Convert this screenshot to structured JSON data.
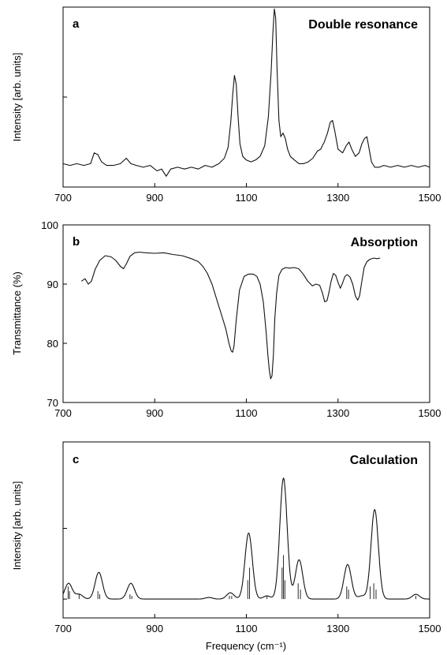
{
  "chart_data": [
    {
      "id": "a",
      "type": "line",
      "panel_letter": "a",
      "title": "Double resonance",
      "xlabel": "",
      "ylabel": "Intensity [arb. units]",
      "xlim": [
        700,
        1500
      ],
      "ylim": [
        0,
        1
      ],
      "xticks": [
        700,
        900,
        1100,
        1300,
        1500
      ],
      "yticks": [],
      "yticks_unlabeled": [
        0.5
      ],
      "grid": false,
      "series": [
        {
          "x": [
            700,
            715,
            730,
            745,
            760,
            768,
            776,
            784,
            795,
            810,
            825,
            838,
            848,
            860,
            875,
            890,
            905,
            915,
            925,
            935,
            950,
            965,
            980,
            995,
            1010,
            1025,
            1040,
            1052,
            1060,
            1066,
            1070,
            1074,
            1078,
            1082,
            1086,
            1092,
            1100,
            1110,
            1120,
            1130,
            1140,
            1148,
            1154,
            1158,
            1161,
            1164,
            1167,
            1171,
            1175,
            1180,
            1185,
            1190,
            1196,
            1205,
            1215,
            1225,
            1235,
            1245,
            1255,
            1262,
            1270,
            1277,
            1283,
            1288,
            1293,
            1300,
            1310,
            1318,
            1324,
            1330,
            1338,
            1346,
            1352,
            1358,
            1363,
            1368,
            1373,
            1380,
            1390,
            1400,
            1415,
            1430,
            1445,
            1460,
            1475,
            1490,
            1500
          ],
          "y": [
            0.13,
            0.12,
            0.13,
            0.12,
            0.13,
            0.19,
            0.18,
            0.14,
            0.12,
            0.12,
            0.13,
            0.16,
            0.13,
            0.12,
            0.11,
            0.12,
            0.09,
            0.1,
            0.06,
            0.1,
            0.11,
            0.1,
            0.11,
            0.1,
            0.12,
            0.11,
            0.13,
            0.16,
            0.22,
            0.36,
            0.51,
            0.62,
            0.57,
            0.39,
            0.24,
            0.17,
            0.15,
            0.14,
            0.15,
            0.17,
            0.23,
            0.39,
            0.64,
            0.86,
            0.99,
            0.94,
            0.66,
            0.37,
            0.28,
            0.3,
            0.27,
            0.21,
            0.17,
            0.15,
            0.13,
            0.13,
            0.14,
            0.16,
            0.2,
            0.21,
            0.25,
            0.3,
            0.36,
            0.37,
            0.31,
            0.21,
            0.19,
            0.23,
            0.25,
            0.21,
            0.17,
            0.19,
            0.24,
            0.27,
            0.28,
            0.21,
            0.14,
            0.11,
            0.11,
            0.12,
            0.11,
            0.12,
            0.11,
            0.12,
            0.11,
            0.12,
            0.11
          ]
        }
      ]
    },
    {
      "id": "b",
      "type": "line",
      "panel_letter": "b",
      "title": "Absorption",
      "xlabel": "",
      "ylabel": "Transmittance (%)",
      "xlim": [
        700,
        1500
      ],
      "ylim": [
        70,
        100
      ],
      "xticks": [
        700,
        900,
        1100,
        1300,
        1500
      ],
      "yticks": [
        70,
        80,
        90,
        100
      ],
      "grid": false,
      "series": [
        {
          "x": [
            740,
            748,
            755,
            762,
            770,
            780,
            792,
            805,
            815,
            825,
            832,
            838,
            846,
            856,
            866,
            880,
            900,
            920,
            940,
            960,
            980,
            995,
            1005,
            1015,
            1025,
            1035,
            1045,
            1055,
            1062,
            1067,
            1070,
            1073,
            1078,
            1085,
            1095,
            1105,
            1115,
            1123,
            1130,
            1137,
            1143,
            1147,
            1150,
            1153,
            1156,
            1159,
            1162,
            1166,
            1171,
            1178,
            1186,
            1194,
            1204,
            1214,
            1224,
            1234,
            1244,
            1252,
            1260,
            1266,
            1271,
            1276,
            1280,
            1285,
            1290,
            1295,
            1300,
            1305,
            1310,
            1315,
            1320,
            1326,
            1332,
            1338,
            1343,
            1347,
            1352,
            1357,
            1363,
            1370,
            1378,
            1385,
            1392
          ],
          "y": [
            90.5,
            90.9,
            90.0,
            90.5,
            92.5,
            94.0,
            94.8,
            94.6,
            94.0,
            93.0,
            92.6,
            93.4,
            94.7,
            95.3,
            95.4,
            95.3,
            95.2,
            95.3,
            95.0,
            94.8,
            94.3,
            93.8,
            93.0,
            91.8,
            90.0,
            87.5,
            85.0,
            82.5,
            80.0,
            78.7,
            78.5,
            79.5,
            84.0,
            89.0,
            91.3,
            91.7,
            91.7,
            91.3,
            90.0,
            87.0,
            82.0,
            78.0,
            75.5,
            74.0,
            74.5,
            78.0,
            84.0,
            88.5,
            91.5,
            92.5,
            92.8,
            92.7,
            92.8,
            92.6,
            91.7,
            90.5,
            89.7,
            90.0,
            89.8,
            88.5,
            87.0,
            87.2,
            88.5,
            90.5,
            91.8,
            91.5,
            90.3,
            89.3,
            90.2,
            91.3,
            91.6,
            91.2,
            90.0,
            88.0,
            87.3,
            88.0,
            90.5,
            92.8,
            93.8,
            94.2,
            94.4,
            94.3,
            94.4
          ]
        }
      ]
    },
    {
      "id": "c",
      "type": "line",
      "panel_letter": "c",
      "title": "Calculation",
      "xlabel": "Frequency (cm⁻¹)",
      "ylabel": "Intensity [arb. units]",
      "xlim": [
        700,
        1500
      ],
      "ylim": [
        -0.12,
        1
      ],
      "xticks": [
        700,
        900,
        1100,
        1300,
        1500
      ],
      "yticks": [],
      "yticks_unlabeled": [
        0.45,
        0
      ],
      "grid": false,
      "baseline": 0,
      "linewidth_cm": 8,
      "peaks": [
        {
          "center": 712,
          "height": 0.1
        },
        {
          "center": 735,
          "height": 0.03
        },
        {
          "center": 778,
          "height": 0.17
        },
        {
          "center": 848,
          "height": 0.1
        },
        {
          "center": 1018,
          "height": 0.01
        },
        {
          "center": 1065,
          "height": 0.04
        },
        {
          "center": 1105,
          "height": 0.42
        },
        {
          "center": 1145,
          "height": 0.02
        },
        {
          "center": 1181,
          "height": 0.77
        },
        {
          "center": 1215,
          "height": 0.25
        },
        {
          "center": 1321,
          "height": 0.22
        },
        {
          "center": 1352,
          "height": 0.02
        },
        {
          "center": 1380,
          "height": 0.57
        },
        {
          "center": 1470,
          "height": 0.03
        }
      ],
      "sticks": [
        {
          "x": 711,
          "h": 0.08
        },
        {
          "x": 714,
          "h": 0.05
        },
        {
          "x": 735,
          "h": 0.03
        },
        {
          "x": 776,
          "h": 0.05
        },
        {
          "x": 780,
          "h": 0.03
        },
        {
          "x": 846,
          "h": 0.03
        },
        {
          "x": 850,
          "h": 0.02
        },
        {
          "x": 1063,
          "h": 0.02
        },
        {
          "x": 1068,
          "h": 0.02
        },
        {
          "x": 1103,
          "h": 0.12
        },
        {
          "x": 1107,
          "h": 0.2
        },
        {
          "x": 1145,
          "h": 0.02
        },
        {
          "x": 1178,
          "h": 0.2
        },
        {
          "x": 1181,
          "h": 0.28
        },
        {
          "x": 1184,
          "h": 0.12
        },
        {
          "x": 1213,
          "h": 0.1
        },
        {
          "x": 1218,
          "h": 0.06
        },
        {
          "x": 1319,
          "h": 0.08
        },
        {
          "x": 1323,
          "h": 0.06
        },
        {
          "x": 1370,
          "h": 0.08
        },
        {
          "x": 1378,
          "h": 0.1
        },
        {
          "x": 1383,
          "h": 0.06
        },
        {
          "x": 1470,
          "h": 0.02
        }
      ]
    }
  ]
}
